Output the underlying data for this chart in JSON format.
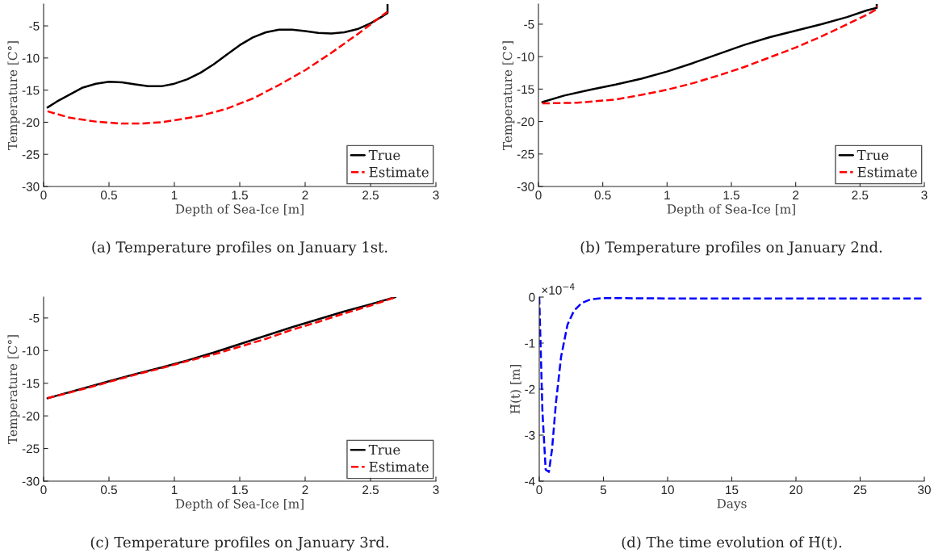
{
  "chart_data": [
    {
      "type": "line",
      "title": "(a) Temperature profiles on January 1st.",
      "xlabel": "Depth of Sea-Ice [m]",
      "ylabel": "Temperature [C°]",
      "xlim": [
        0,
        3
      ],
      "xticks": [
        0,
        0.5,
        1,
        1.5,
        2,
        2.5,
        3
      ],
      "ylim": [
        -30,
        -1.6
      ],
      "yticks": [
        -30,
        -25,
        -20,
        -15,
        -10,
        -5
      ],
      "legend": "bottom right",
      "grid": false,
      "series": [
        {
          "name": "True",
          "color": "#000000",
          "line_style": "solid",
          "x": [
            0.03,
            0.1,
            0.2,
            0.3,
            0.4,
            0.5,
            0.6,
            0.7,
            0.8,
            0.9,
            1.0,
            1.1,
            1.2,
            1.3,
            1.4,
            1.5,
            1.6,
            1.7,
            1.8,
            1.9,
            2.0,
            2.1,
            2.2,
            2.3,
            2.4,
            2.5,
            2.6,
            2.63,
            2.63
          ],
          "values": [
            -17.7,
            -16.8,
            -15.7,
            -14.6,
            -14.0,
            -13.7,
            -13.8,
            -14.1,
            -14.4,
            -14.4,
            -14.0,
            -13.3,
            -12.3,
            -11.0,
            -9.5,
            -8.0,
            -6.8,
            -6.0,
            -5.6,
            -5.6,
            -5.8,
            -6.1,
            -6.2,
            -6.0,
            -5.5,
            -4.6,
            -3.4,
            -3.0,
            -1.6
          ]
        },
        {
          "name": "Estimate",
          "color": "#ff0000",
          "line_style": "dashed",
          "x": [
            0.03,
            0.2,
            0.4,
            0.6,
            0.75,
            0.9,
            1.0,
            1.2,
            1.4,
            1.6,
            1.8,
            2.0,
            2.2,
            2.4,
            2.55,
            2.63
          ],
          "values": [
            -18.3,
            -19.3,
            -19.9,
            -20.2,
            -20.2,
            -20.0,
            -19.7,
            -19.0,
            -17.9,
            -16.3,
            -14.2,
            -11.9,
            -9.2,
            -6.3,
            -4.0,
            -2.8
          ]
        }
      ]
    },
    {
      "type": "line",
      "title": "(b) Temperature profiles on January 2nd.",
      "xlabel": "Depth of Sea-Ice [m]",
      "ylabel": "Temperature [C°]",
      "xlim": [
        0,
        3
      ],
      "xticks": [
        0,
        0.5,
        1,
        1.5,
        2,
        2.5,
        3
      ],
      "ylim": [
        -30,
        -1.9
      ],
      "yticks": [
        -30,
        -25,
        -20,
        -15,
        -10,
        -5
      ],
      "legend": "bottom right",
      "grid": false,
      "series": [
        {
          "name": "True",
          "color": "#000000",
          "line_style": "solid",
          "x": [
            0.03,
            0.2,
            0.4,
            0.6,
            0.8,
            1.0,
            1.2,
            1.4,
            1.6,
            1.8,
            2.0,
            2.2,
            2.4,
            2.55,
            2.63,
            2.63
          ],
          "values": [
            -17.0,
            -16.0,
            -15.1,
            -14.3,
            -13.4,
            -12.3,
            -11.0,
            -9.6,
            -8.2,
            -7.0,
            -6.0,
            -5.0,
            -3.9,
            -2.9,
            -2.5,
            -1.9
          ]
        },
        {
          "name": "Estimate",
          "color": "#ff0000",
          "line_style": "dashed",
          "x": [
            0.03,
            0.3,
            0.6,
            0.8,
            1.0,
            1.2,
            1.4,
            1.6,
            1.8,
            2.0,
            2.2,
            2.4,
            2.55,
            2.63,
            2.63
          ],
          "values": [
            -17.2,
            -17.1,
            -16.6,
            -15.9,
            -15.1,
            -14.1,
            -12.9,
            -11.6,
            -10.1,
            -8.6,
            -6.9,
            -5.0,
            -3.6,
            -2.7,
            -2.2
          ]
        }
      ]
    },
    {
      "type": "line",
      "title": "(c) Temperature profiles on January 3rd.",
      "xlabel": "Depth of Sea-Ice [m]",
      "ylabel": "Temperature [C°]",
      "xlim": [
        0,
        3
      ],
      "xticks": [
        0,
        0.5,
        1,
        1.5,
        2,
        2.5,
        3
      ],
      "ylim": [
        -30,
        -1.8
      ],
      "yticks": [
        -30,
        -25,
        -20,
        -15,
        -10,
        -5
      ],
      "legend": "bottom right",
      "grid": false,
      "series": [
        {
          "name": "True",
          "color": "#000000",
          "line_style": "solid",
          "x": [
            0.03,
            0.1,
            0.3,
            0.5,
            0.7,
            0.9,
            1.1,
            1.3,
            1.5,
            1.7,
            1.9,
            2.1,
            2.3,
            2.5,
            2.69
          ],
          "values": [
            -17.3,
            -16.9,
            -15.8,
            -14.7,
            -13.6,
            -12.6,
            -11.5,
            -10.3,
            -9.0,
            -7.7,
            -6.4,
            -5.2,
            -4.0,
            -2.9,
            -1.8
          ]
        },
        {
          "name": "Estimate",
          "color": "#ff0000",
          "line_style": "dashed",
          "x": [
            0.03,
            0.3,
            0.5,
            0.7,
            0.9,
            1.1,
            1.3,
            1.5,
            1.7,
            1.9,
            2.1,
            2.3,
            2.5,
            2.68
          ],
          "values": [
            -17.3,
            -15.9,
            -14.8,
            -13.7,
            -12.7,
            -11.6,
            -10.6,
            -9.4,
            -8.2,
            -6.8,
            -5.6,
            -4.3,
            -3.1,
            -1.9
          ]
        }
      ]
    },
    {
      "type": "line",
      "title": "(d) The time evolution of H̃(t).",
      "xlabel": "Days",
      "ylabel": "H̃(t) [m]",
      "annotations": [
        "×10$^{−4}$"
      ],
      "xlim": [
        0,
        30
      ],
      "xticks": [
        0,
        5,
        10,
        15,
        20,
        25,
        30
      ],
      "ylim": [
        -4,
        0
      ],
      "yticks": [
        -4,
        -3,
        -2,
        -1,
        0
      ],
      "grid": false,
      "series": [
        {
          "color": "#0000ff",
          "line_style": "dashed",
          "x": [
            0,
            0.1,
            0.25,
            0.5,
            0.75,
            1.0,
            1.3,
            1.7,
            2.2,
            2.7,
            3.3,
            4,
            5,
            10,
            20,
            30
          ],
          "values": [
            0,
            -1.0,
            -2.5,
            -3.75,
            -3.8,
            -3.3,
            -2.3,
            -1.3,
            -0.6,
            -0.3,
            -0.13,
            -0.05,
            -0.02,
            -0.03,
            -0.03,
            -0.03
          ]
        }
      ]
    }
  ]
}
